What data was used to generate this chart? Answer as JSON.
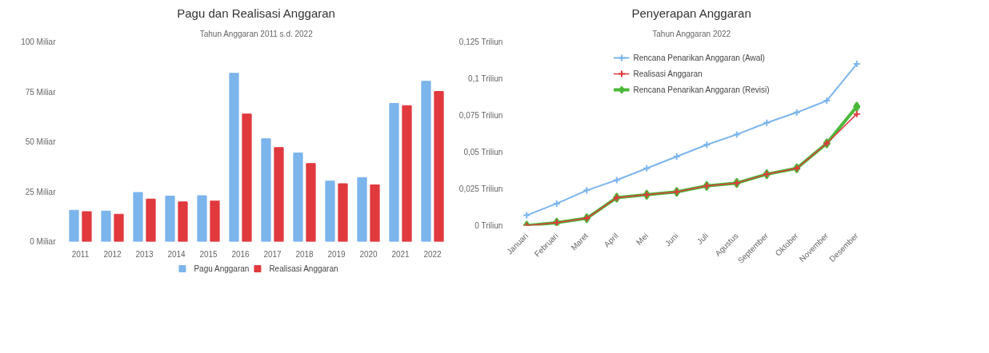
{
  "chart_data": [
    {
      "type": "bar",
      "title": "Pagu dan Realisasi Anggaran",
      "subtitle": "Tahun Anggaran 2011 s.d. 2022",
      "categories": [
        "2011",
        "2012",
        "2013",
        "2014",
        "2015",
        "2016",
        "2017",
        "2018",
        "2019",
        "2020",
        "2021",
        "2022"
      ],
      "series": [
        {
          "name": "Pagu Anggaran",
          "color": "#7cb5ec",
          "values": [
            15.7,
            15.3,
            24.6,
            22.8,
            23.0,
            84.3,
            51.5,
            44.4,
            30.3,
            32.1,
            69.2,
            80.3
          ]
        },
        {
          "name": "Realisasi Anggaran",
          "color": "#e0393e",
          "values": [
            15.0,
            13.7,
            21.3,
            19.9,
            20.3,
            63.9,
            47.1,
            39.1,
            29.0,
            28.4,
            68.1,
            75.2
          ]
        }
      ],
      "ylim": [
        0,
        100
      ],
      "yticks": [
        {
          "value": 0,
          "label": "0 Miliar"
        },
        {
          "value": 25,
          "label": "25 Miliar"
        },
        {
          "value": 50,
          "label": "50 Miliar"
        },
        {
          "value": 75,
          "label": "75 Miliar"
        },
        {
          "value": 100,
          "label": "100 Miliar"
        }
      ],
      "legend": "bottom"
    },
    {
      "type": "line",
      "title": "Penyerapan Anggaran",
      "subtitle": "Tahun Anggaran 2022",
      "categories": [
        "Januari",
        "Februari",
        "Maret",
        "April",
        "Mei",
        "Juni",
        "Juli",
        "Agustus",
        "September",
        "Oktober",
        "November",
        "Desember"
      ],
      "series": [
        {
          "name": "Rencana Penarikan Anggaran (Awal)",
          "color": "#7cb5ec",
          "marker": "cross",
          "values": [
            0.007,
            0.015,
            0.024,
            0.031,
            0.039,
            0.047,
            0.055,
            0.062,
            0.07,
            0.077,
            0.085,
            0.11
          ]
        },
        {
          "name": "Realisasi Anggaran",
          "color": "#e0393e",
          "marker": "cross",
          "values": [
            0.0,
            0.002,
            0.005,
            0.019,
            0.021,
            0.023,
            0.027,
            0.029,
            0.035,
            0.039,
            0.056,
            0.076
          ]
        },
        {
          "name": "Rencana Penarikan Anggaran (Revisi)",
          "color": "#4cb93a",
          "marker": "diamond",
          "values": [
            0.0,
            0.002,
            0.005,
            0.019,
            0.021,
            0.023,
            0.027,
            0.029,
            0.035,
            0.039,
            0.056,
            0.081
          ]
        }
      ],
      "ylim": [
        0,
        0.125
      ],
      "yticks": [
        {
          "value": 0,
          "label": "0 Triliun"
        },
        {
          "value": 0.025,
          "label": "0,025 Triliun"
        },
        {
          "value": 0.05,
          "label": "0,05 Triliun"
        },
        {
          "value": 0.075,
          "label": "0,075 Triliun"
        },
        {
          "value": 0.1,
          "label": "0,1 Triliun"
        },
        {
          "value": 0.125,
          "label": "0,125 Triliun"
        }
      ],
      "legend": "top"
    }
  ]
}
